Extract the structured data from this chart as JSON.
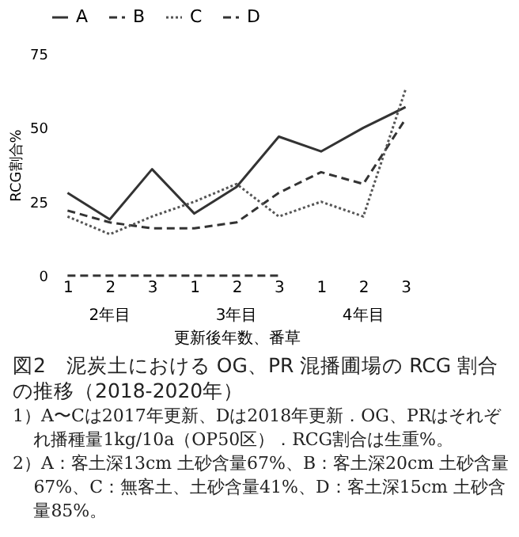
{
  "chart_data": {
    "type": "line",
    "title": "図2　泥炭土における OG、PR 混播圃場の RCG 割合の推移（2018-2020年）",
    "xlabel": "更新後年数、番草",
    "ylabel": "RCG割合%",
    "categories": [
      "1",
      "2",
      "3",
      "1",
      "2",
      "3",
      "1",
      "2",
      "3"
    ],
    "series": [
      {
        "name": "A",
        "color": "#333333",
        "line_style": "solid",
        "values": [
          28,
          19,
          36,
          21,
          30,
          47,
          42,
          50,
          57
        ]
      },
      {
        "name": "B",
        "color": "#333333",
        "line_style": "dashed",
        "values": [
          22,
          18,
          16,
          16,
          18,
          28,
          35,
          31,
          53
        ]
      },
      {
        "name": "C",
        "color": "#555555",
        "line_style": "dotted",
        "values": [
          20,
          14,
          20,
          25,
          31,
          20,
          25,
          20,
          63
        ]
      },
      {
        "name": "D",
        "color": "#333333",
        "line_style": "dashed",
        "values": [
          0,
          0,
          0,
          0,
          0,
          0,
          null,
          null,
          null
        ]
      }
    ],
    "ylim": [
      0,
      75
    ],
    "yticks": [
      0,
      25,
      50,
      75
    ],
    "grid": false,
    "legend": "top",
    "marker": "none",
    "annotations": [
      "2年目",
      "3年目",
      "4年目",
      "1）A〜Cは2017年更新、Dは2018年更新．OG、PRはそれぞれ播種量1kg/10a（OP50区）．RCG割合は生重%。",
      "2）A：客土深13cm 土砂含量67%、B：客土深20cm 土砂含量67%、C：無客土、土砂含量41%、D：客土深15cm 土砂含量85%。"
    ]
  }
}
